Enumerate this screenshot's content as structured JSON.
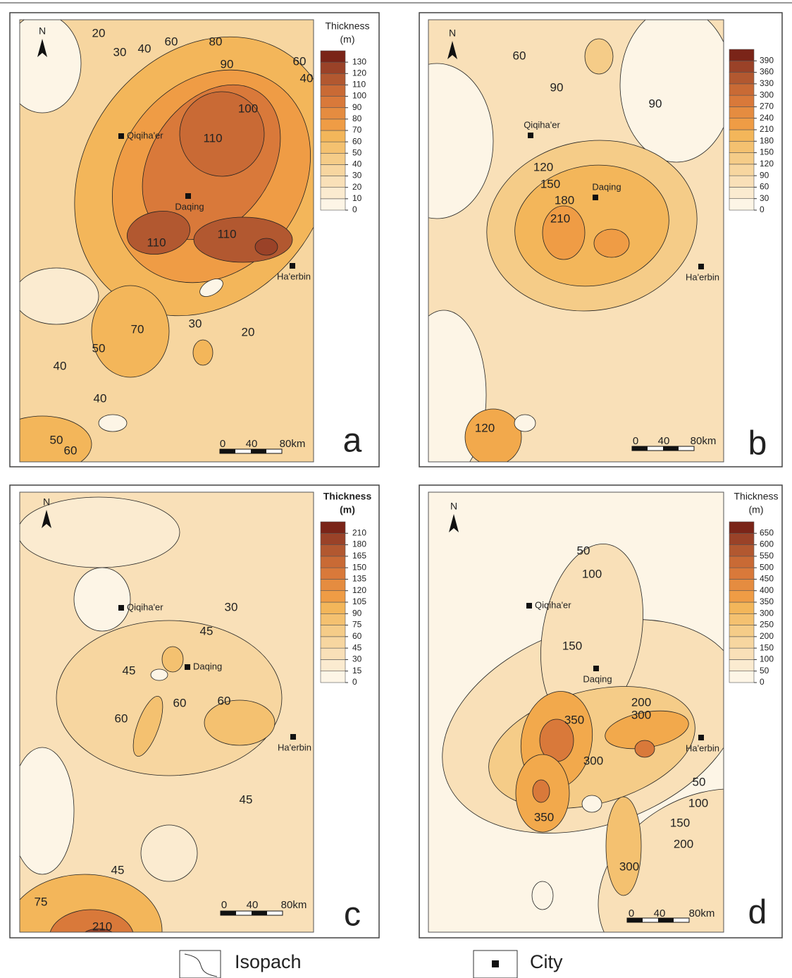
{
  "palette": [
    "#fdf5e6",
    "#fbebd0",
    "#f9e0b8",
    "#f7d6a0",
    "#f5cc88",
    "#f4c170",
    "#f3b65a",
    "#f2a94c",
    "#ef9c45",
    "#e58c40",
    "#d9793a",
    "#c96a35",
    "#b25830",
    "#9a4228",
    "#7a2418"
  ],
  "panels": [
    {
      "letter": "a",
      "north": "N",
      "legend": {
        "title": "Thickness",
        "unit": "(m)",
        "ticks": [
          0,
          10,
          20,
          30,
          40,
          50,
          60,
          70,
          80,
          90,
          100,
          110,
          120,
          130
        ]
      },
      "cities": [
        "Qiqiha'er",
        "Daqing",
        "Ha'erbin"
      ],
      "scale": [
        "0",
        "40",
        "80km"
      ],
      "contour_labels": [
        "20",
        "30",
        "40",
        "60",
        "80",
        "90",
        "60",
        "40",
        "100",
        "110",
        "110",
        "110",
        "70",
        "50",
        "40",
        "30",
        "20",
        "40",
        "50",
        "60"
      ]
    },
    {
      "letter": "b",
      "north": "N",
      "legend": {
        "ticks": [
          0,
          30,
          60,
          90,
          120,
          150,
          180,
          210,
          240,
          270,
          300,
          330,
          360,
          390
        ]
      },
      "cities": [
        "Qiqiha'er",
        "Daqing",
        "Ha'erbin"
      ],
      "scale": [
        "0",
        "40",
        "80km"
      ],
      "contour_labels": [
        "60",
        "90",
        "90",
        "120",
        "150",
        "180",
        "210",
        "120"
      ]
    },
    {
      "letter": "c",
      "north": "N",
      "legend": {
        "title": "Thickness",
        "unit": "(m)",
        "ticks": [
          0,
          15,
          30,
          45,
          60,
          75,
          90,
          105,
          120,
          135,
          150,
          165,
          180,
          210
        ]
      },
      "cities": [
        "Qiqiha'er",
        "Daqing",
        "Ha'erbin"
      ],
      "scale": [
        "0",
        "40",
        "80km"
      ],
      "contour_labels": [
        "30",
        "45",
        "45",
        "60",
        "60",
        "60",
        "45",
        "45",
        "75",
        "210"
      ]
    },
    {
      "letter": "d",
      "north": "N",
      "legend": {
        "title": "Thickness",
        "unit": "(m)",
        "ticks": [
          0,
          50,
          100,
          150,
          200,
          250,
          300,
          350,
          400,
          450,
          500,
          550,
          600,
          650
        ]
      },
      "cities": [
        "Qiqiha'er",
        "Daqing",
        "Ha'erbin"
      ],
      "scale": [
        "0",
        "40",
        "80km"
      ],
      "contour_labels": [
        "50",
        "100",
        "150",
        "200",
        "300",
        "350",
        "300",
        "350",
        "50",
        "100",
        "150",
        "200",
        "300"
      ]
    }
  ],
  "key": {
    "isopach": "Isopach",
    "city": "City"
  }
}
